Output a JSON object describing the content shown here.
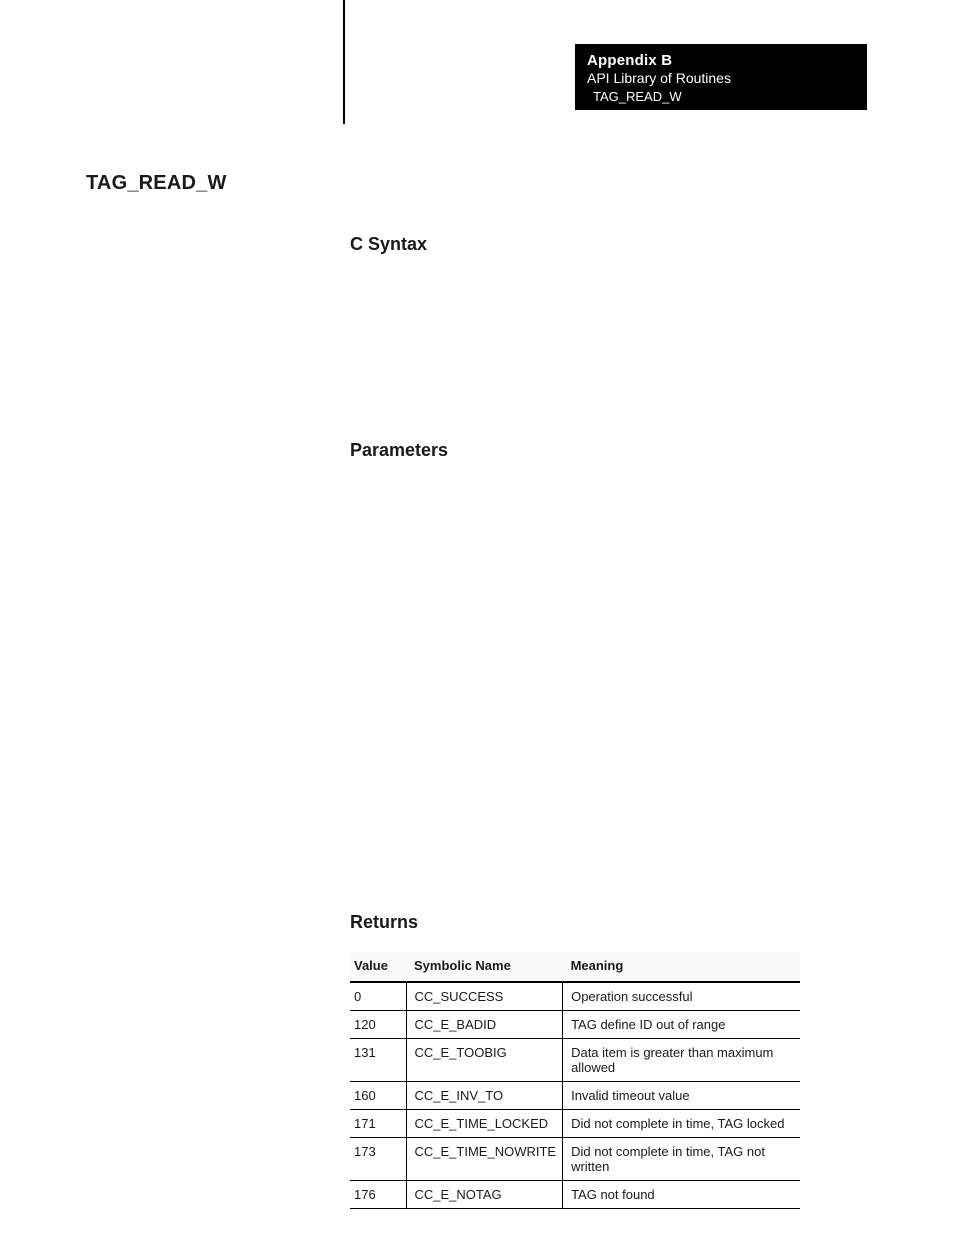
{
  "header": {
    "appendix": "Appendix B",
    "subtitle": "API Library of Routines",
    "tag": "TAG_READ_W"
  },
  "title": "TAG_READ_W",
  "sections": {
    "syntax": "C Syntax",
    "parameters": "Parameters",
    "returns": "Returns"
  },
  "returns_table": {
    "columns": [
      "Value",
      "Symbolic Name",
      "Meaning"
    ],
    "rows": [
      {
        "value": "0",
        "name": "CC_SUCCESS",
        "meaning": "Operation successful"
      },
      {
        "value": "120",
        "name": "CC_E_BADID",
        "meaning": "TAG define ID out of range"
      },
      {
        "value": "131",
        "name": "CC_E_TOOBIG",
        "meaning": "Data item is greater than maximum allowed"
      },
      {
        "value": "160",
        "name": "CC_E_INV_TO",
        "meaning": "Invalid timeout value"
      },
      {
        "value": "171",
        "name": "CC_E_TIME_LOCKED",
        "meaning": "Did not complete in time, TAG locked"
      },
      {
        "value": "173",
        "name": "CC_E_TIME_NOWRITE",
        "meaning": "Did not complete in time, TAG not written"
      },
      {
        "value": "176",
        "name": "CC_E_NOTAG",
        "meaning": "TAG not found"
      }
    ]
  },
  "colors": {
    "page_bg": "#ffffff",
    "text": "#1a1a1a",
    "header_bg": "#000000",
    "header_text": "#ffffff",
    "rule": "#000000",
    "table_header_bg": "#fafafa"
  },
  "fonts": {
    "title_size_pt": 15,
    "section_size_pt": 14,
    "body_size_pt": 10
  }
}
